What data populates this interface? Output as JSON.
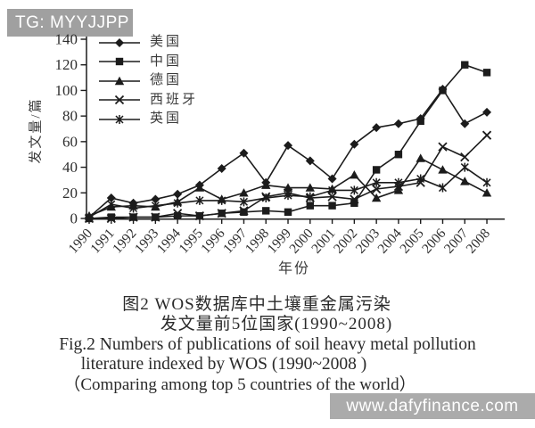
{
  "tag": {
    "label": "TG: MYYJJPP"
  },
  "watermark": {
    "url_text": "www.dafyfinance.com"
  },
  "caption": {
    "zh_line1": "图2  WOS数据库中土壤重金属污染",
    "zh_line2": "发文量前5位国家(1990~2008)",
    "en_line1": "Fig.2  Numbers of publications of soil heavy metal pollution",
    "en_line2": "literature indexed by WOS (1990~2008 )",
    "en_line3": "（Comparing among top 5 countries of the world）"
  },
  "chart_data": {
    "type": "line",
    "title": "",
    "xlabel": "年份",
    "ylabel": "发文量/篇",
    "x": [
      1990,
      1991,
      1992,
      1993,
      1994,
      1995,
      1996,
      1997,
      1998,
      1999,
      2000,
      2001,
      2002,
      2003,
      2004,
      2005,
      2006,
      2007,
      2008
    ],
    "ylim": [
      0,
      140
    ],
    "y_ticks": [
      0,
      20,
      40,
      60,
      80,
      100,
      120,
      140
    ],
    "grid": false,
    "legend_position": "top-left-inside",
    "line_color": "#1c1c1c",
    "series": [
      {
        "key": "usa",
        "name": "美国",
        "marker": "diamond",
        "values": [
          1,
          16,
          12,
          15,
          19,
          26,
          39,
          51,
          28,
          57,
          45,
          31,
          58,
          71,
          74,
          78,
          101,
          74,
          83
        ]
      },
      {
        "key": "china",
        "name": "中国",
        "marker": "square",
        "values": [
          0,
          1,
          1,
          1,
          2,
          2,
          4,
          5,
          6,
          5,
          10,
          10,
          12,
          38,
          50,
          76,
          100,
          120,
          114
        ]
      },
      {
        "key": "germany",
        "name": "德国",
        "marker": "triangle",
        "values": [
          2,
          9,
          10,
          9,
          13,
          24,
          15,
          20,
          26,
          24,
          24,
          23,
          34,
          16,
          22,
          47,
          38,
          29,
          20
        ]
      },
      {
        "key": "spain",
        "name": "西班牙",
        "marker": "x",
        "values": [
          0,
          0,
          1,
          1,
          4,
          2,
          4,
          6,
          17,
          20,
          16,
          17,
          15,
          23,
          25,
          28,
          56,
          48,
          65
        ]
      },
      {
        "key": "uk",
        "name": "英国",
        "marker": "star",
        "values": [
          1,
          11,
          8,
          10,
          12,
          14,
          14,
          13,
          16,
          18,
          17,
          22,
          22,
          28,
          28,
          31,
          24,
          40,
          28
        ]
      }
    ]
  }
}
